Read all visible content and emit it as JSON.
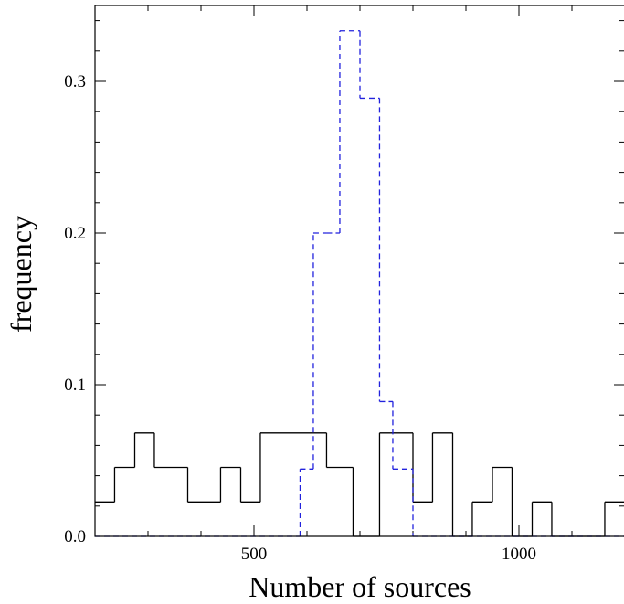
{
  "chart_data": {
    "type": "histogram",
    "title": "",
    "xlabel": "Number of sources",
    "ylabel": "frequency",
    "xlim": [
      200,
      1200
    ],
    "ylim": [
      0,
      0.35
    ],
    "grid": false,
    "legend": "none",
    "x_ticks": [
      {
        "value": 500,
        "label": "500"
      },
      {
        "value": 1000,
        "label": "1000"
      }
    ],
    "y_ticks": [
      {
        "value": 0,
        "label": "0.0"
      },
      {
        "value": 0.1,
        "label": "0.1"
      },
      {
        "value": 0.2,
        "label": "0.2"
      },
      {
        "value": 0.3,
        "label": "0.3"
      }
    ],
    "x_minor_step": 100,
    "y_minor_step": 0.02,
    "series": [
      {
        "style": "solid",
        "color": "#000000",
        "bin_edges": [
          200,
          237,
          275,
          312,
          375,
          437,
          475,
          512,
          637,
          687,
          737,
          800,
          837,
          875,
          912,
          950,
          987,
          1025,
          1062,
          1100,
          1162,
          1200
        ],
        "values": [
          0.0227,
          0.0455,
          0.0682,
          0.0455,
          0.0227,
          0.0455,
          0.0227,
          0.0682,
          0.0455,
          0.0,
          0.0682,
          0.0227,
          0.0682,
          0.0,
          0.0227,
          0.0455,
          0.0,
          0.0227,
          0.0,
          0.0,
          0.0227
        ]
      },
      {
        "style": "dashed",
        "color": "#2222dd",
        "bin_edges": [
          200,
          587,
          612,
          637,
          662,
          700,
          737,
          762,
          800,
          1200
        ],
        "values": [
          0.0,
          0.0444,
          0.2,
          0.2,
          0.3333,
          0.2889,
          0.0889,
          0.0444,
          0.0
        ]
      }
    ]
  }
}
